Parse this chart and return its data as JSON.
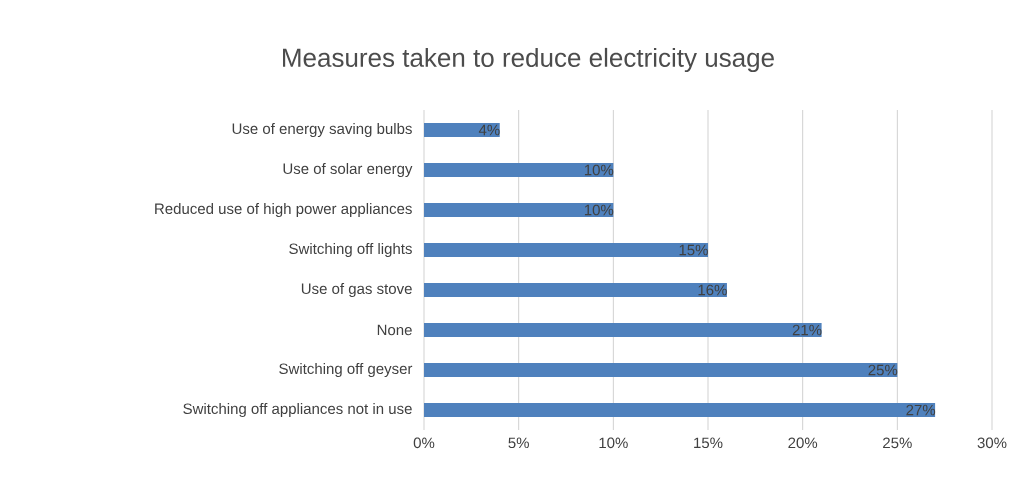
{
  "chart_data": {
    "type": "bar",
    "orientation": "horizontal",
    "title": "Measures taken to reduce electricity usage",
    "categories": [
      "Use of energy saving bulbs",
      "Use of solar energy",
      "Reduced use of high power appliances",
      "Switching off lights",
      "Use of gas stove",
      "None",
      "Switching off geyser",
      "Switching off appliances not in use"
    ],
    "values": [
      4,
      10,
      10,
      15,
      16,
      21,
      25,
      27
    ],
    "value_labels": [
      "4%",
      "10%",
      "10%",
      "15%",
      "16%",
      "21%",
      "25%",
      "27%"
    ],
    "color": "#4f81bd",
    "xlim": [
      0,
      30
    ],
    "xticks": [
      {
        "value": 0,
        "label": "0%"
      },
      {
        "value": 5,
        "label": "5%"
      },
      {
        "value": 10,
        "label": "10%"
      },
      {
        "value": 15,
        "label": "15%"
      },
      {
        "value": 20,
        "label": "20%"
      },
      {
        "value": 25,
        "label": "25%"
      },
      {
        "value": 30,
        "label": "30%"
      }
    ],
    "grid": "x"
  }
}
